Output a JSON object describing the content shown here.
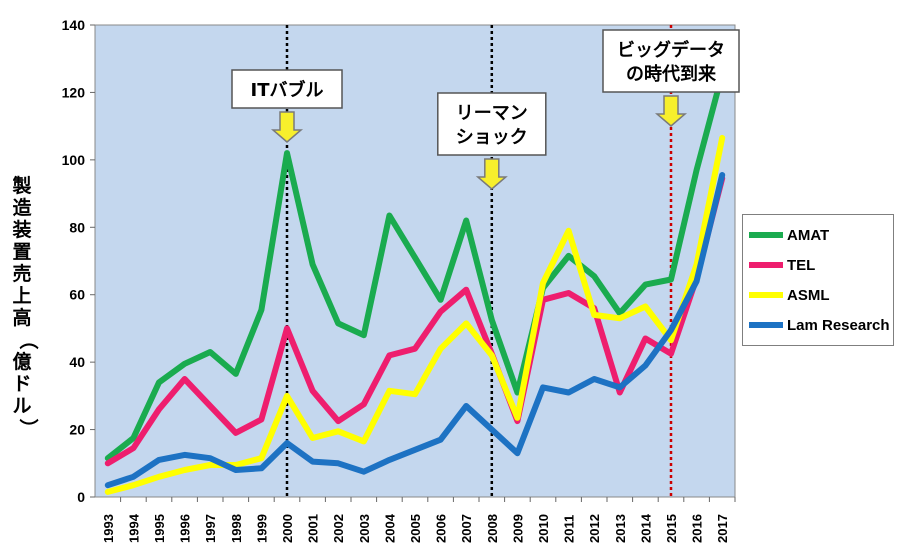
{
  "chart_data": {
    "type": "line",
    "ylabel": "製造装置売上高（億ドル）",
    "ylim": [
      0,
      140
    ],
    "yticks": [
      0,
      20,
      40,
      60,
      80,
      100,
      120,
      140
    ],
    "categories": [
      "1993",
      "1994",
      "1995",
      "1996",
      "1997",
      "1998",
      "1999",
      "2000",
      "2001",
      "2002",
      "2003",
      "2004",
      "2005",
      "2006",
      "2007",
      "2008",
      "2009",
      "2010",
      "2011",
      "2012",
      "2013",
      "2014",
      "2015",
      "2016",
      "2017"
    ],
    "series": [
      {
        "name": "AMAT",
        "color": "#1aab4f",
        "values": [
          11.5,
          17.5,
          34,
          39.5,
          43,
          36.5,
          55.5,
          102,
          69,
          51.5,
          48,
          83.5,
          71,
          58.5,
          82,
          52.5,
          31,
          62,
          71.5,
          65.5,
          54.5,
          63,
          64.5,
          97,
          125.5
        ]
      },
      {
        "name": "TEL",
        "color": "#ee1e6e",
        "values": [
          10,
          14.5,
          26,
          35,
          27,
          19,
          23,
          50,
          31.5,
          22.5,
          27.5,
          42,
          44,
          55,
          61.5,
          42.5,
          22.5,
          58.5,
          60.5,
          56,
          31,
          47,
          42.5,
          65,
          94.5
        ]
      },
      {
        "name": "ASML",
        "color": "#ffff00",
        "values": [
          1.5,
          3.5,
          6,
          8,
          9.5,
          9.5,
          11.5,
          30,
          17.5,
          19.5,
          16.5,
          31.5,
          30.5,
          44,
          51.5,
          42,
          23.5,
          63.5,
          79,
          54,
          53,
          56.5,
          46.5,
          69,
          106.5
        ]
      },
      {
        "name": "Lam Research",
        "color": "#1d72c3",
        "values": [
          3.5,
          6,
          11,
          12.5,
          11.5,
          8,
          8.5,
          16,
          10.5,
          10,
          7.5,
          11,
          14,
          17,
          27,
          20,
          13,
          32.5,
          31,
          35,
          32.5,
          39,
          49.5,
          64,
          95.5
        ]
      }
    ],
    "annotations": [
      {
        "id": "it-bubble",
        "lines": [
          "ITバブル"
        ],
        "year": "2000",
        "line_color": "#000000"
      },
      {
        "id": "lehman",
        "lines": [
          "リーマン",
          "ショック"
        ],
        "year": "2008",
        "line_color": "#000000"
      },
      {
        "id": "bigdata",
        "lines": [
          "ビッグデータ",
          "の時代到来"
        ],
        "year": "2015",
        "line_color": "#cc0000"
      }
    ],
    "legend_position": "right",
    "grid": false
  },
  "colors": {
    "plot_background": "#c4d7ee",
    "arrow": "#f7ef2c",
    "arrow_border": "#7a7a7a"
  }
}
